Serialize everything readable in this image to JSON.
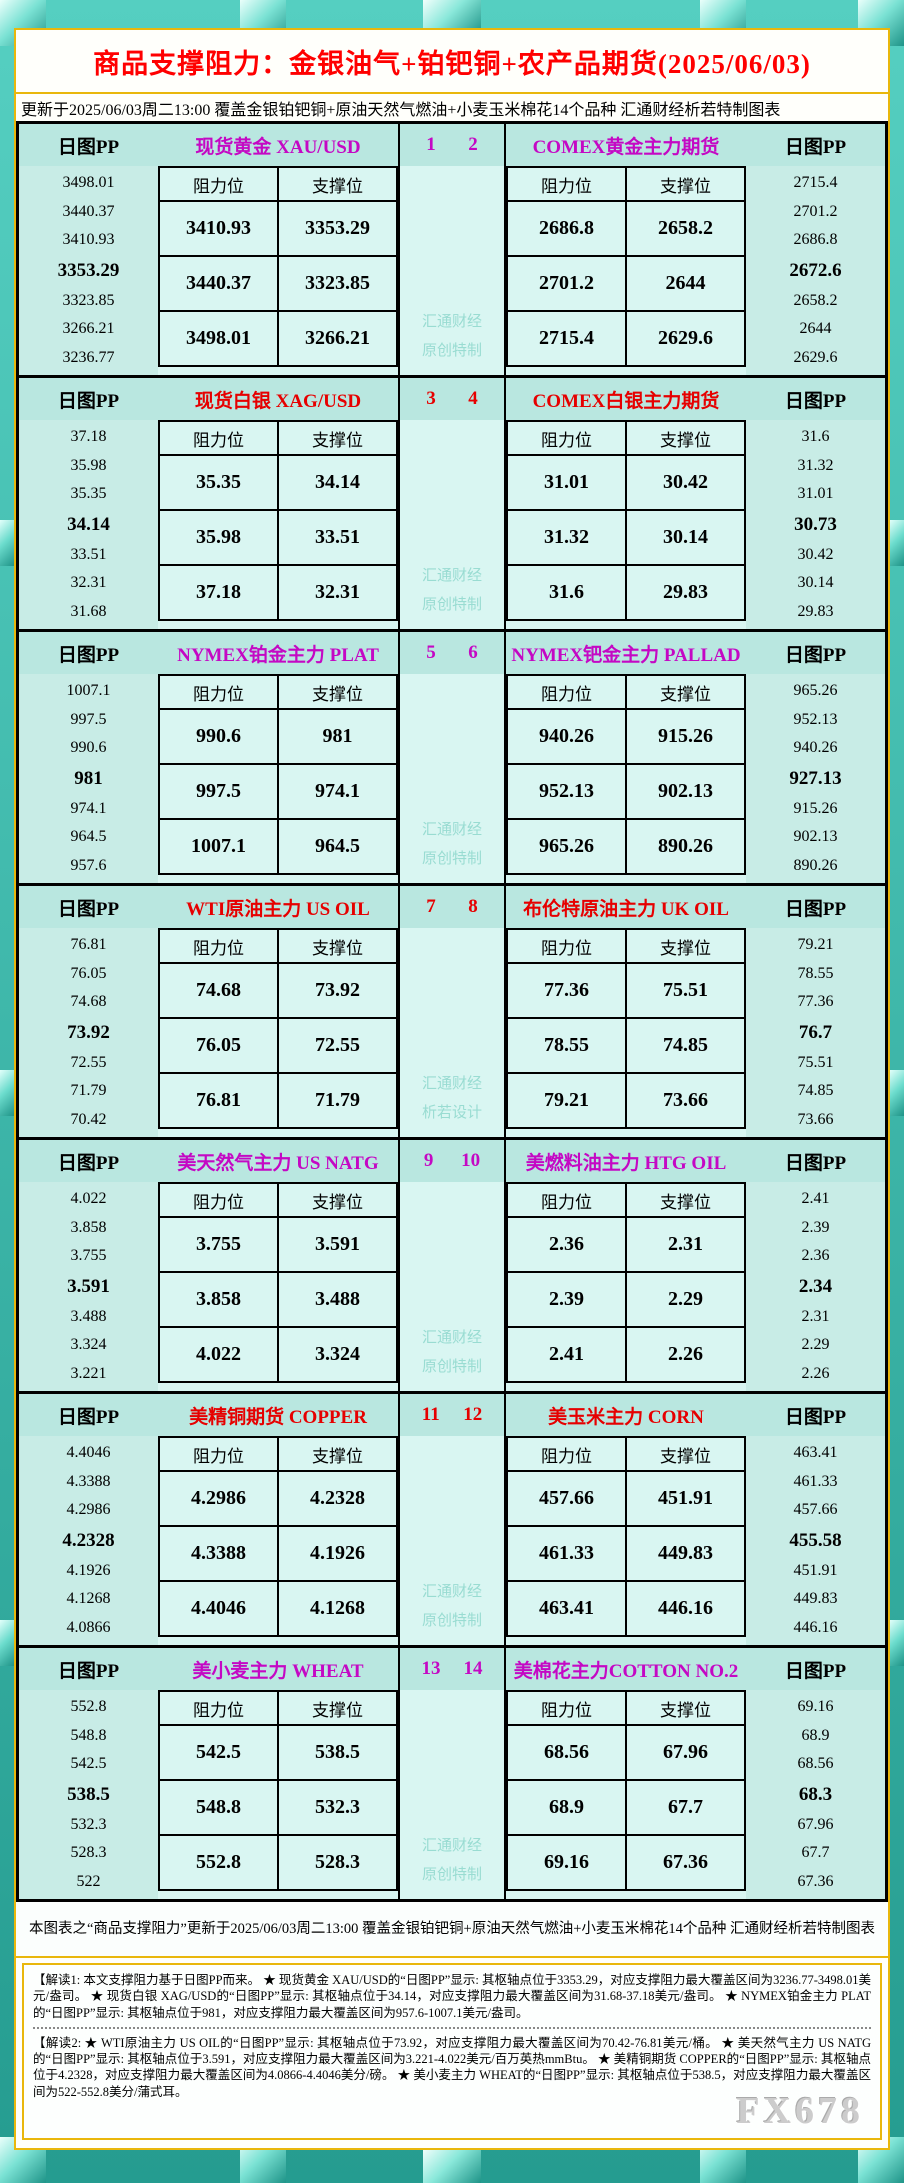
{
  "title": "商品支撑阻力：金银油气+铂钯铜+农产品期货(2025/06/03)",
  "update_line": "更新于2025/06/03周二13:00  覆盖金银铂钯铜+原油天然气燃油+小麦玉米棉花14个品种  汇通财经析若特制图表",
  "labels": {
    "pp": "日图PP",
    "resistance": "阻力位",
    "support": "支撑位"
  },
  "accent_colors": {
    "magenta": "#c408c4",
    "red": "#e60000"
  },
  "sections": [
    {
      "accent": "#c408c4",
      "pair": [
        "1",
        "2"
      ],
      "watermark": [
        "汇通财经",
        "原创特制"
      ],
      "left": {
        "name": "现货黄金 XAU/USD",
        "pp": [
          "3498.01",
          "3440.37",
          "3410.93",
          "3353.29",
          "3323.85",
          "3266.21",
          "3236.77"
        ],
        "rows": [
          [
            "3410.93",
            "3353.29"
          ],
          [
            "3440.37",
            "3323.85"
          ],
          [
            "3498.01",
            "3266.21"
          ]
        ]
      },
      "right": {
        "name": "COMEX黄金主力期货",
        "rows": [
          [
            "2686.8",
            "2658.2"
          ],
          [
            "2701.2",
            "2644"
          ],
          [
            "2715.4",
            "2629.6"
          ]
        ],
        "pp": [
          "2715.4",
          "2701.2",
          "2686.8",
          "2672.6",
          "2658.2",
          "2644",
          "2629.6"
        ]
      }
    },
    {
      "accent": "#e60000",
      "pair": [
        "3",
        "4"
      ],
      "watermark": [
        "汇通财经",
        "原创特制"
      ],
      "left": {
        "name": "现货白银 XAG/USD",
        "pp": [
          "37.18",
          "35.98",
          "35.35",
          "34.14",
          "33.51",
          "32.31",
          "31.68"
        ],
        "rows": [
          [
            "35.35",
            "34.14"
          ],
          [
            "35.98",
            "33.51"
          ],
          [
            "37.18",
            "32.31"
          ]
        ]
      },
      "right": {
        "name": "COMEX白银主力期货",
        "rows": [
          [
            "31.01",
            "30.42"
          ],
          [
            "31.32",
            "30.14"
          ],
          [
            "31.6",
            "29.83"
          ]
        ],
        "pp": [
          "31.6",
          "31.32",
          "31.01",
          "30.73",
          "30.42",
          "30.14",
          "29.83"
        ]
      }
    },
    {
      "accent": "#c408c4",
      "pair": [
        "5",
        "6"
      ],
      "watermark": [
        "汇通财经",
        "原创特制"
      ],
      "left": {
        "name": "NYMEX铂金主力 PLAT",
        "pp": [
          "1007.1",
          "997.5",
          "990.6",
          "981",
          "974.1",
          "964.5",
          "957.6"
        ],
        "rows": [
          [
            "990.6",
            "981"
          ],
          [
            "997.5",
            "974.1"
          ],
          [
            "1007.1",
            "964.5"
          ]
        ]
      },
      "right": {
        "name": "NYMEX钯金主力 PALLAD",
        "rows": [
          [
            "940.26",
            "915.26"
          ],
          [
            "952.13",
            "902.13"
          ],
          [
            "965.26",
            "890.26"
          ]
        ],
        "pp": [
          "965.26",
          "952.13",
          "940.26",
          "927.13",
          "915.26",
          "902.13",
          "890.26"
        ]
      }
    },
    {
      "accent": "#e60000",
      "pair": [
        "7",
        "8"
      ],
      "watermark": [
        "汇通财经",
        "析若设计"
      ],
      "left": {
        "name": "WTI原油主力 US OIL",
        "pp": [
          "76.81",
          "76.05",
          "74.68",
          "73.92",
          "72.55",
          "71.79",
          "70.42"
        ],
        "rows": [
          [
            "74.68",
            "73.92"
          ],
          [
            "76.05",
            "72.55"
          ],
          [
            "76.81",
            "71.79"
          ]
        ]
      },
      "right": {
        "name": "布伦特原油主力 UK OIL",
        "rows": [
          [
            "77.36",
            "75.51"
          ],
          [
            "78.55",
            "74.85"
          ],
          [
            "79.21",
            "73.66"
          ]
        ],
        "pp": [
          "79.21",
          "78.55",
          "77.36",
          "76.7",
          "75.51",
          "74.85",
          "73.66"
        ]
      }
    },
    {
      "accent": "#c408c4",
      "pair": [
        "9",
        "10"
      ],
      "watermark": [
        "汇通财经",
        "原创特制"
      ],
      "left": {
        "name": "美天然气主力 US NATG",
        "pp": [
          "4.022",
          "3.858",
          "3.755",
          "3.591",
          "3.488",
          "3.324",
          "3.221"
        ],
        "rows": [
          [
            "3.755",
            "3.591"
          ],
          [
            "3.858",
            "3.488"
          ],
          [
            "4.022",
            "3.324"
          ]
        ]
      },
      "right": {
        "name": "美燃料油主力 HTG OIL",
        "rows": [
          [
            "2.36",
            "2.31"
          ],
          [
            "2.39",
            "2.29"
          ],
          [
            "2.41",
            "2.26"
          ]
        ],
        "pp": [
          "2.41",
          "2.39",
          "2.36",
          "2.34",
          "2.31",
          "2.29",
          "2.26"
        ]
      }
    },
    {
      "accent": "#e60000",
      "pair": [
        "11",
        "12"
      ],
      "watermark": [
        "汇通财经",
        "原创特制"
      ],
      "left": {
        "name": "美精铜期货 COPPER",
        "pp": [
          "4.4046",
          "4.3388",
          "4.2986",
          "4.2328",
          "4.1926",
          "4.1268",
          "4.0866"
        ],
        "rows": [
          [
            "4.2986",
            "4.2328"
          ],
          [
            "4.3388",
            "4.1926"
          ],
          [
            "4.4046",
            "4.1268"
          ]
        ]
      },
      "right": {
        "name": "美玉米主力 CORN",
        "rows": [
          [
            "457.66",
            "451.91"
          ],
          [
            "461.33",
            "449.83"
          ],
          [
            "463.41",
            "446.16"
          ]
        ],
        "pp": [
          "463.41",
          "461.33",
          "457.66",
          "455.58",
          "451.91",
          "449.83",
          "446.16"
        ]
      }
    },
    {
      "accent": "#c408c4",
      "pair": [
        "13",
        "14"
      ],
      "watermark": [
        "汇通财经",
        "原创特制"
      ],
      "left": {
        "name": "美小麦主力 WHEAT",
        "pp": [
          "552.8",
          "548.8",
          "542.5",
          "538.5",
          "532.3",
          "528.3",
          "522"
        ],
        "rows": [
          [
            "542.5",
            "538.5"
          ],
          [
            "548.8",
            "532.3"
          ],
          [
            "552.8",
            "528.3"
          ]
        ]
      },
      "right": {
        "name": "美棉花主力COTTON NO.2",
        "rows": [
          [
            "68.56",
            "67.96"
          ],
          [
            "68.9",
            "67.7"
          ],
          [
            "69.16",
            "67.36"
          ]
        ],
        "pp": [
          "69.16",
          "68.9",
          "68.56",
          "68.3",
          "67.96",
          "67.7",
          "67.36"
        ]
      }
    }
  ],
  "footer_note": "本图表之“商品支撑阻力”更新于2025/06/03周二13:00  覆盖金银铂钯铜+原油天然气燃油+小麦玉米棉花14个品种  汇通财经析若特制图表",
  "notes": [
    "【解读1: 本文支撑阻力基于日图PP而来。 ★ 现货黄金 XAU/USD的“日图PP”显示: 其枢轴点位于3353.29，对应支撑阻力最大覆盖区间为3236.77-3498.01美元/盎司。 ★ 现货白银 XAG/USD的“日图PP”显示: 其枢轴点位于34.14，对应支撑阻力最大覆盖区间为31.68-37.18美元/盎司。 ★ NYMEX铂金主力 PLAT的“日图PP”显示: 其枢轴点位于981，对应支撑阻力最大覆盖区间为957.6-1007.1美元/盎司。",
    "【解读2:  ★ WTI原油主力 US OIL的“日图PP”显示: 其枢轴点位于73.92，对应支撑阻力最大覆盖区间为70.42-76.81美元/桶。 ★ 美天然气主力 US NATG的“日图PP”显示: 其枢轴点位于3.591，对应支撑阻力最大覆盖区间为3.221-4.022美元/百万英热mmBtu。 ★ 美精铜期货 COPPER的“日图PP”显示: 其枢轴点位于4.2328，对应支撑阻力最大覆盖区间为4.0866-4.4046美分/磅。 ★ 美小麦主力 WHEAT的“日图PP”显示: 其枢轴点位于538.5，对应支撑阻力最大覆盖区间为522-552.8美分/蒲式耳。"
  ],
  "brand_watermark": "FX678",
  "chart_data": {
    "type": "table",
    "title": "商品支撑阻力：金银油气+铂钯铜+农产品期货(2025/06/03)",
    "columns": [
      "阻力位",
      "支撑位"
    ],
    "instruments": [
      {
        "market": "现货黄金 XAU/USD",
        "pivot": 3353.29,
        "resistance": [
          3410.93,
          3440.37,
          3498.01
        ],
        "support": [
          3353.29,
          3323.85,
          3266.21
        ],
        "pp_ladder": [
          3498.01,
          3440.37,
          3410.93,
          3353.29,
          3323.85,
          3266.21,
          3236.77
        ]
      },
      {
        "market": "COMEX黄金主力期货",
        "pivot": 2672.6,
        "resistance": [
          2686.8,
          2701.2,
          2715.4
        ],
        "support": [
          2658.2,
          2644,
          2629.6
        ],
        "pp_ladder": [
          2715.4,
          2701.2,
          2686.8,
          2672.6,
          2658.2,
          2644,
          2629.6
        ]
      },
      {
        "market": "现货白银 XAG/USD",
        "pivot": 34.14,
        "resistance": [
          35.35,
          35.98,
          37.18
        ],
        "support": [
          34.14,
          33.51,
          32.31
        ],
        "pp_ladder": [
          37.18,
          35.98,
          35.35,
          34.14,
          33.51,
          32.31,
          31.68
        ]
      },
      {
        "market": "COMEX白银主力期货",
        "pivot": 30.73,
        "resistance": [
          31.01,
          31.32,
          31.6
        ],
        "support": [
          30.42,
          30.14,
          29.83
        ],
        "pp_ladder": [
          31.6,
          31.32,
          31.01,
          30.73,
          30.42,
          30.14,
          29.83
        ]
      },
      {
        "market": "NYMEX铂金主力 PLAT",
        "pivot": 981,
        "resistance": [
          990.6,
          997.5,
          1007.1
        ],
        "support": [
          981,
          974.1,
          964.5
        ],
        "pp_ladder": [
          1007.1,
          997.5,
          990.6,
          981,
          974.1,
          964.5,
          957.6
        ]
      },
      {
        "market": "NYMEX钯金主力 PALLAD",
        "pivot": 927.13,
        "resistance": [
          940.26,
          952.13,
          965.26
        ],
        "support": [
          915.26,
          902.13,
          890.26
        ],
        "pp_ladder": [
          965.26,
          952.13,
          940.26,
          927.13,
          915.26,
          902.13,
          890.26
        ]
      },
      {
        "market": "WTI原油主力 US OIL",
        "pivot": 73.92,
        "resistance": [
          74.68,
          76.05,
          76.81
        ],
        "support": [
          73.92,
          72.55,
          71.79
        ],
        "pp_ladder": [
          76.81,
          76.05,
          74.68,
          73.92,
          72.55,
          71.79,
          70.42
        ]
      },
      {
        "market": "布伦特原油主力 UK OIL",
        "pivot": 76.7,
        "resistance": [
          77.36,
          78.55,
          79.21
        ],
        "support": [
          75.51,
          74.85,
          73.66
        ],
        "pp_ladder": [
          79.21,
          78.55,
          77.36,
          76.7,
          75.51,
          74.85,
          73.66
        ]
      },
      {
        "market": "美天然气主力 US NATG",
        "pivot": 3.591,
        "resistance": [
          3.755,
          3.858,
          4.022
        ],
        "support": [
          3.591,
          3.488,
          3.324
        ],
        "pp_ladder": [
          4.022,
          3.858,
          3.755,
          3.591,
          3.488,
          3.324,
          3.221
        ]
      },
      {
        "market": "美燃料油主力 HTG OIL",
        "pivot": 2.34,
        "resistance": [
          2.36,
          2.39,
          2.41
        ],
        "support": [
          2.31,
          2.29,
          2.26
        ],
        "pp_ladder": [
          2.41,
          2.39,
          2.36,
          2.34,
          2.31,
          2.29,
          2.26
        ]
      },
      {
        "market": "美精铜期货 COPPER",
        "pivot": 4.2328,
        "resistance": [
          4.2986,
          4.3388,
          4.4046
        ],
        "support": [
          4.2328,
          4.1926,
          4.1268
        ],
        "pp_ladder": [
          4.4046,
          4.3388,
          4.2986,
          4.2328,
          4.1926,
          4.1268,
          4.0866
        ]
      },
      {
        "market": "美玉米主力 CORN",
        "pivot": 455.58,
        "resistance": [
          457.66,
          461.33,
          463.41
        ],
        "support": [
          451.91,
          449.83,
          446.16
        ],
        "pp_ladder": [
          463.41,
          461.33,
          457.66,
          455.58,
          451.91,
          449.83,
          446.16
        ]
      },
      {
        "market": "美小麦主力 WHEAT",
        "pivot": 538.5,
        "resistance": [
          542.5,
          548.8,
          552.8
        ],
        "support": [
          538.5,
          532.3,
          528.3
        ],
        "pp_ladder": [
          552.8,
          548.8,
          542.5,
          538.5,
          532.3,
          528.3,
          522
        ]
      },
      {
        "market": "美棉花主力COTTON NO.2",
        "pivot": 68.3,
        "resistance": [
          68.56,
          68.9,
          69.16
        ],
        "support": [
          67.96,
          67.7,
          67.36
        ],
        "pp_ladder": [
          69.16,
          68.9,
          68.56,
          68.3,
          67.96,
          67.7,
          67.36
        ]
      }
    ]
  }
}
